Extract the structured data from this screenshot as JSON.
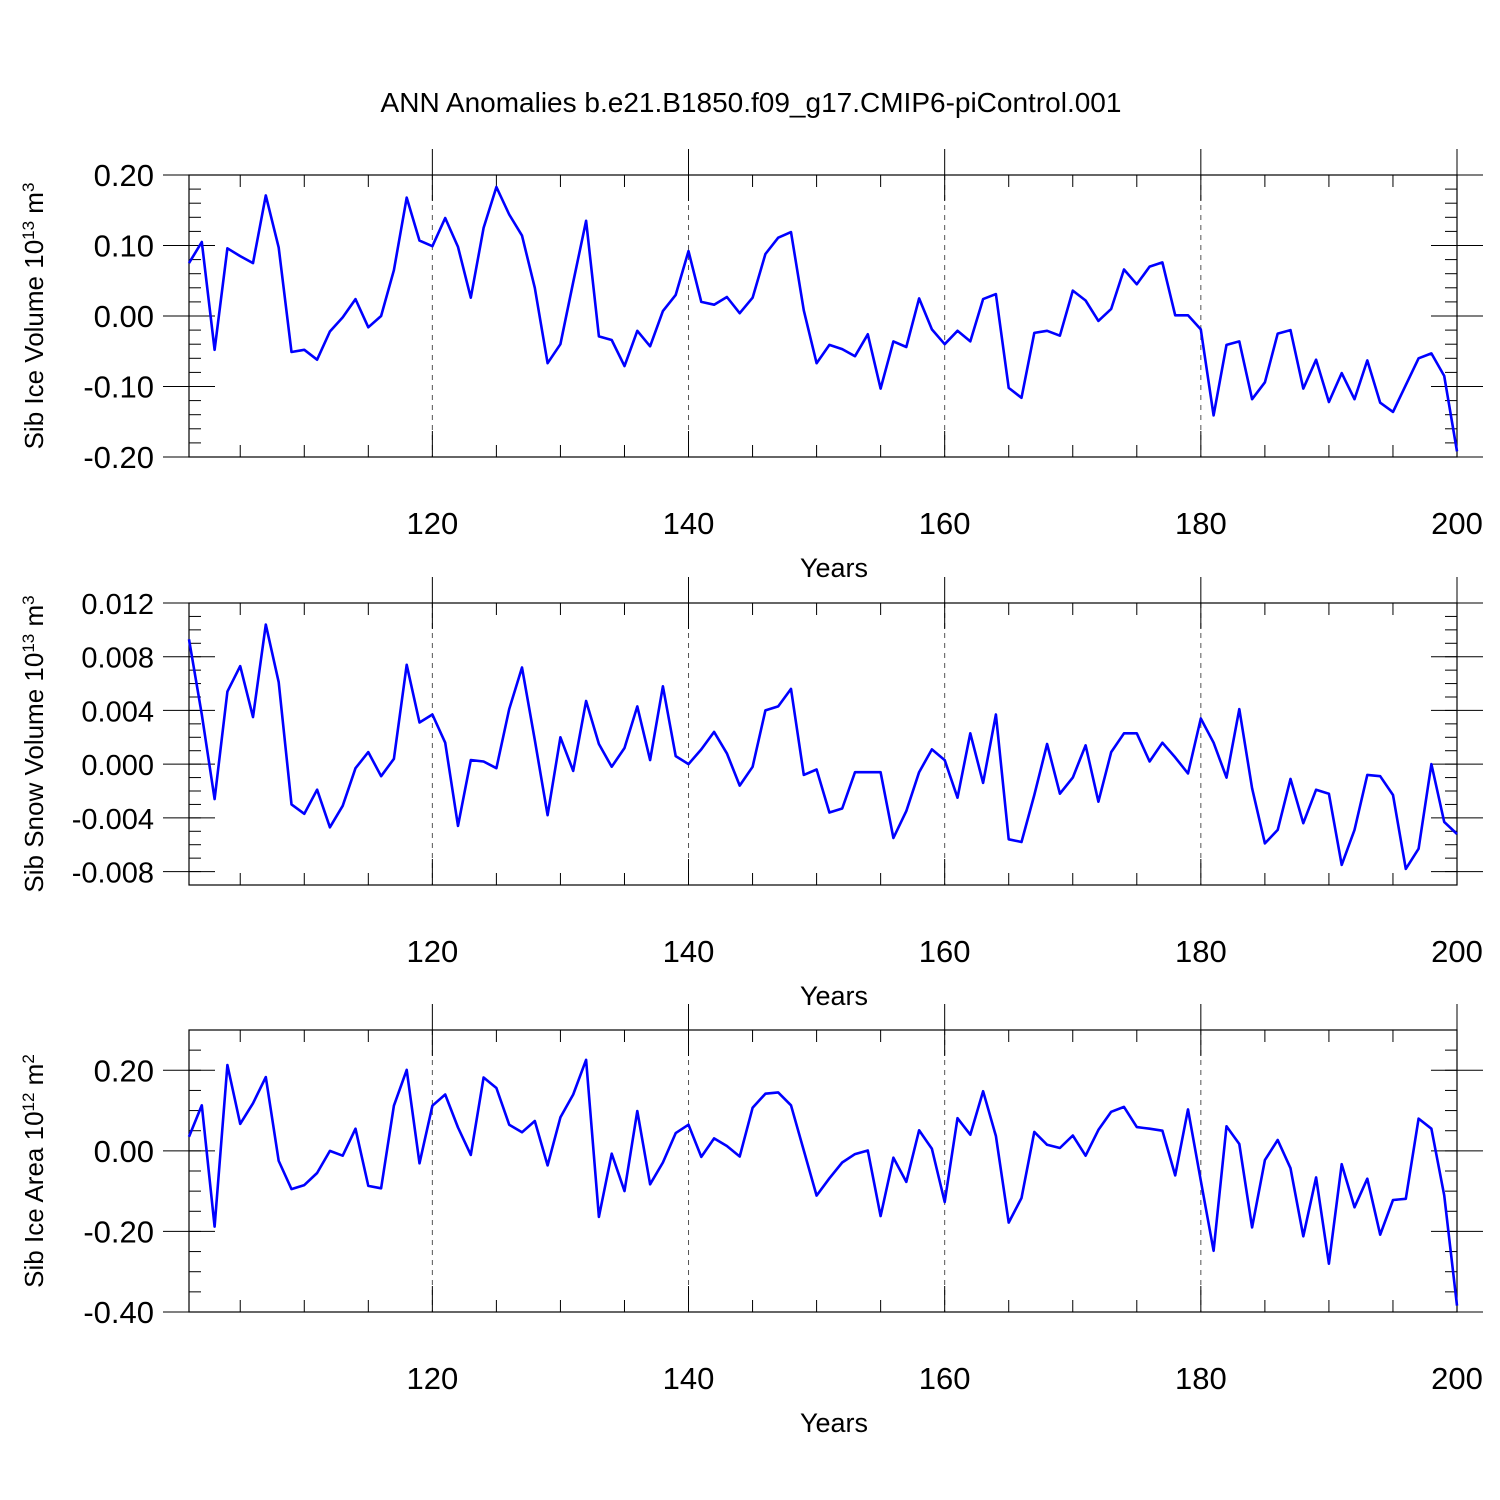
{
  "title": "ANN Anomalies b.e21.B1850.f09_g17.CMIP6-piControl.001",
  "chart_data": [
    {
      "type": "line",
      "xlabel": "Years",
      "ylabel": "Sib Ice Volume 10",
      "ylabel_sup": "13",
      "ylabel_unit": " m",
      "ylabel_unit_sup": "3",
      "xlim": [
        101,
        200
      ],
      "ylim": [
        -0.2,
        0.2
      ],
      "yticks": [
        -0.2,
        -0.1,
        0.0,
        0.1,
        0.2
      ],
      "ytick_labels": [
        "-0.20",
        "-0.10",
        "0.00",
        "0.10",
        "0.20"
      ],
      "xticks": [
        120,
        140,
        160,
        180,
        200
      ],
      "xtick_labels": [
        "120",
        "140",
        "160",
        "180",
        "200"
      ],
      "grid": "vertical dashed at major x ticks",
      "series": [
        {
          "name": "Sib Ice Volume",
          "color": "#0000ff",
          "x_start": 101,
          "values": [
            0.075,
            0.105,
            -0.048,
            0.096,
            0.085,
            0.075,
            0.171,
            0.097,
            -0.051,
            -0.048,
            -0.062,
            -0.022,
            -0.002,
            0.024,
            -0.016,
            0.0,
            0.065,
            0.168,
            0.107,
            0.099,
            0.139,
            0.098,
            0.026,
            0.125,
            0.183,
            0.144,
            0.114,
            0.04,
            -0.067,
            -0.04,
            0.048,
            0.135,
            -0.029,
            -0.034,
            -0.071,
            -0.021,
            -0.043,
            0.007,
            0.03,
            0.092,
            0.02,
            0.016,
            0.027,
            0.004,
            0.026,
            0.088,
            0.111,
            0.119,
            0.008,
            -0.067,
            -0.041,
            -0.047,
            -0.057,
            -0.026,
            -0.103,
            -0.036,
            -0.044,
            0.025,
            -0.019,
            -0.04,
            -0.021,
            -0.036,
            0.024,
            0.031,
            -0.102,
            -0.116,
            -0.024,
            -0.021,
            -0.028,
            0.036,
            0.022,
            -0.007,
            0.01,
            0.066,
            0.045,
            0.07,
            0.076,
            0.001,
            0.001,
            -0.019,
            -0.141,
            -0.041,
            -0.036,
            -0.118,
            -0.094,
            -0.025,
            -0.02,
            -0.103,
            -0.062,
            -0.122,
            -0.081,
            -0.118,
            -0.063,
            -0.123,
            -0.136,
            -0.098,
            -0.06,
            -0.053,
            -0.085,
            -0.192
          ]
        }
      ]
    },
    {
      "type": "line",
      "xlabel": "Years",
      "ylabel": "Sib Snow Volume 10",
      "ylabel_sup": "13",
      "ylabel_unit": " m",
      "ylabel_unit_sup": "3",
      "xlim": [
        101,
        200
      ],
      "ylim": [
        -0.009,
        0.012
      ],
      "yticks": [
        -0.008,
        -0.004,
        0.0,
        0.004,
        0.008,
        0.012
      ],
      "ytick_labels": [
        "-0.008",
        "-0.004",
        "0.000",
        "0.004",
        "0.008",
        "0.012"
      ],
      "xticks": [
        120,
        140,
        160,
        180,
        200
      ],
      "xtick_labels": [
        "120",
        "140",
        "160",
        "180",
        "200"
      ],
      "grid": "vertical dashed at major x ticks",
      "series": [
        {
          "name": "Sib Snow Volume",
          "color": "#0000ff",
          "x_start": 101,
          "values": [
            0.0093,
            0.0037,
            -0.0026,
            0.0054,
            0.0073,
            0.0035,
            0.0104,
            0.0061,
            -0.003,
            -0.0037,
            -0.0019,
            -0.0047,
            -0.0031,
            -0.0003,
            0.0009,
            -0.0009,
            0.0004,
            0.0074,
            0.0031,
            0.0037,
            0.0016,
            -0.0046,
            0.0003,
            0.0002,
            -0.0003,
            0.0041,
            0.0072,
            0.0018,
            -0.0038,
            0.002,
            -0.0005,
            0.0047,
            0.0015,
            -0.0002,
            0.0012,
            0.0043,
            0.0003,
            0.0058,
            0.0006,
            0.0,
            0.0011,
            0.0024,
            0.0008,
            -0.0016,
            -0.0002,
            0.004,
            0.0043,
            0.0056,
            -0.0008,
            -0.0004,
            -0.0036,
            -0.0033,
            -0.0006,
            -0.0006,
            -0.0006,
            -0.0055,
            -0.0035,
            -0.0006,
            0.0011,
            0.0003,
            -0.0025,
            0.0023,
            -0.0014,
            0.0037,
            -0.0056,
            -0.0058,
            -0.0023,
            0.0015,
            -0.0022,
            -0.001,
            0.0014,
            -0.0028,
            0.0009,
            0.0023,
            0.0023,
            0.0002,
            0.0016,
            0.0005,
            -0.0007,
            0.0034,
            0.0016,
            -0.001,
            0.0041,
            -0.0018,
            -0.0059,
            -0.0049,
            -0.0011,
            -0.0044,
            -0.0019,
            -0.0022,
            -0.0075,
            -0.0049,
            -0.0008,
            -0.0009,
            -0.0023,
            -0.0078,
            -0.0063,
            0.0,
            -0.0043,
            -0.0052
          ]
        }
      ]
    },
    {
      "type": "line",
      "xlabel": "Years",
      "ylabel": "Sib Ice Area 10",
      "ylabel_sup": "12",
      "ylabel_unit": " m",
      "ylabel_unit_sup": "2",
      "xlim": [
        101,
        200
      ],
      "ylim": [
        -0.4,
        0.3
      ],
      "yticks": [
        -0.4,
        -0.2,
        0.0,
        0.2
      ],
      "ytick_labels": [
        "-0.40",
        "-0.20",
        "0.00",
        "0.20"
      ],
      "xticks": [
        120,
        140,
        160,
        180,
        200
      ],
      "xtick_labels": [
        "120",
        "140",
        "160",
        "180",
        "200"
      ],
      "grid": "vertical dashed at major x ticks",
      "series": [
        {
          "name": "Sib Ice Area",
          "color": "#0000ff",
          "x_start": 101,
          "values": [
            0.035,
            0.113,
            -0.188,
            0.213,
            0.067,
            0.118,
            0.183,
            -0.025,
            -0.095,
            -0.085,
            -0.055,
            0.0,
            -0.012,
            0.055,
            -0.087,
            -0.093,
            0.112,
            0.201,
            -0.031,
            0.112,
            0.14,
            0.058,
            -0.01,
            0.182,
            0.156,
            0.065,
            0.046,
            0.074,
            -0.036,
            0.083,
            0.14,
            0.226,
            -0.164,
            -0.007,
            -0.1,
            0.099,
            -0.083,
            -0.029,
            0.044,
            0.065,
            -0.015,
            0.031,
            0.012,
            -0.014,
            0.107,
            0.142,
            0.145,
            0.113,
            0.001,
            -0.111,
            -0.068,
            -0.029,
            -0.008,
            0.001,
            -0.162,
            -0.017,
            -0.077,
            0.051,
            0.005,
            -0.127,
            0.081,
            0.04,
            0.148,
            0.037,
            -0.178,
            -0.117,
            0.047,
            0.015,
            0.007,
            0.038,
            -0.012,
            0.052,
            0.097,
            0.109,
            0.059,
            0.055,
            0.05,
            -0.061,
            0.103,
            -0.074,
            -0.248,
            0.061,
            0.017,
            -0.19,
            -0.023,
            0.027,
            -0.043,
            -0.212,
            -0.066,
            -0.28,
            -0.033,
            -0.14,
            -0.069,
            -0.208,
            -0.122,
            -0.119,
            0.08,
            0.055,
            -0.11,
            -0.384
          ]
        }
      ]
    }
  ]
}
